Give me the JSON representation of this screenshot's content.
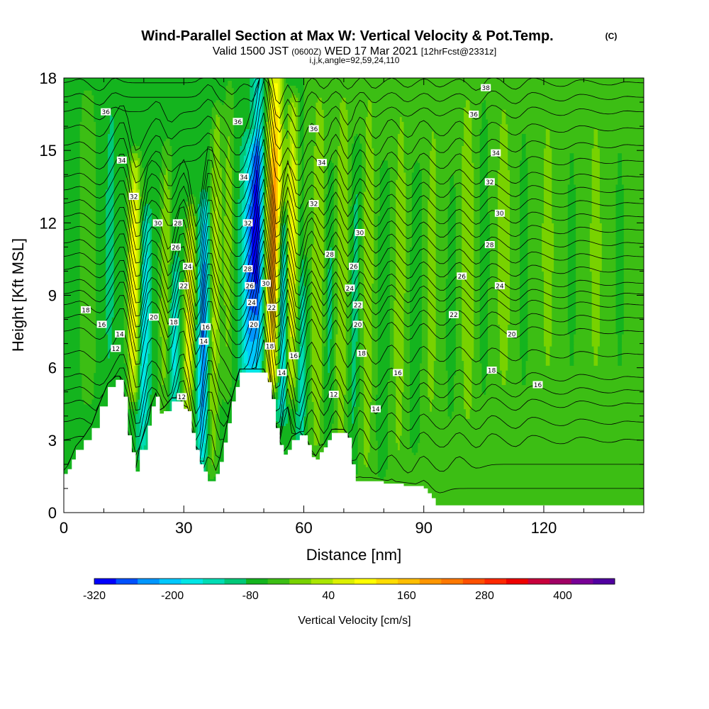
{
  "header": {
    "title": "Wind-Parallel Section at Max W: Vertical Velocity & Pot.Temp.",
    "copyright": "(C)",
    "valid_prefix": "Valid 1500 JST",
    "valid_zulu": "(0600Z)",
    "valid_date": "WED 17 Mar 2021",
    "forecast": "[12hrFcst@2331z]",
    "grid_info": "i,j,k,angle=92,59,24,110"
  },
  "chart_data": {
    "type": "heatmap",
    "title": "Wind-Parallel Section at Max W: Vertical Velocity & Pot.Temp.",
    "xlabel": "Distance [nm]",
    "ylabel": "Height [Kft MSL]",
    "xlim": [
      0,
      145
    ],
    "ylim": [
      0,
      18
    ],
    "x_ticks": [
      0,
      30,
      60,
      90,
      120
    ],
    "y_ticks": [
      0,
      3,
      6,
      9,
      12,
      15,
      18
    ],
    "grid": false,
    "terrain": {
      "x": [
        0,
        1,
        2,
        3,
        5,
        7,
        9,
        11,
        13,
        14,
        15,
        16,
        17,
        18,
        19,
        21,
        22,
        23,
        24,
        25,
        27,
        29,
        30,
        31,
        32,
        33,
        34,
        35,
        36,
        37,
        38,
        39,
        40,
        41,
        42,
        43,
        44,
        45,
        46,
        47,
        48,
        49,
        50,
        51,
        52,
        53,
        54,
        55,
        56,
        57,
        59,
        61,
        62,
        63,
        64,
        65,
        66,
        67,
        69,
        70,
        71,
        72,
        73,
        75,
        77,
        80,
        85,
        90,
        91,
        92,
        93,
        145
      ],
      "y": [
        1.6,
        1.8,
        2.2,
        2.6,
        3.0,
        3.5,
        4.4,
        5.2,
        5.5,
        5.5,
        4.8,
        3.2,
        2.5,
        1.7,
        2.6,
        3.6,
        4.4,
        4.8,
        4.1,
        4.2,
        4.6,
        4.6,
        4.3,
        4.2,
        3.3,
        2.6,
        2.0,
        1.7,
        1.3,
        1.3,
        1.6,
        2.1,
        2.9,
        3.7,
        4.6,
        5.2,
        5.8,
        5.8,
        5.8,
        5.8,
        5.8,
        5.8,
        5.8,
        5.4,
        4.7,
        3.5,
        2.8,
        2.4,
        2.6,
        3.0,
        3.2,
        2.8,
        2.3,
        2.2,
        2.5,
        2.7,
        3.0,
        3.3,
        3.3,
        3.3,
        3.1,
        2.0,
        1.3,
        1.3,
        1.3,
        1.2,
        1.1,
        1.0,
        0.8,
        0.6,
        0.3,
        0.3
      ]
    },
    "w_features": [
      {
        "x": 16.5,
        "x_bottom": 17,
        "x_top": 18,
        "half_width": 1.6,
        "amplitude": 230,
        "y_from": 5.0,
        "y_to": 14.5
      },
      {
        "x": 20,
        "x_bottom": 19.5,
        "x_top": 21,
        "half_width": 1.2,
        "amplitude": -140,
        "y_from": 3.0,
        "y_to": 12
      },
      {
        "x": 25,
        "x_bottom": 24.5,
        "x_top": 26,
        "half_width": 1.5,
        "amplitude": 110,
        "y_from": 4.5,
        "y_to": 15
      },
      {
        "x": 27.5,
        "x_bottom": 27,
        "x_top": 28.5,
        "half_width": 1.2,
        "amplitude": -110,
        "y_from": 4.0,
        "y_to": 10
      },
      {
        "x": 31.5,
        "x_bottom": 30.5,
        "x_top": 32.5,
        "half_width": 1.4,
        "amplitude": 190,
        "y_from": 3.5,
        "y_to": 12.5
      },
      {
        "x": 35,
        "x_bottom": 34.5,
        "x_top": 35.5,
        "half_width": 1.3,
        "amplitude": -220,
        "y_from": 2.5,
        "y_to": 12.5
      },
      {
        "x": 38,
        "x_bottom": 37,
        "x_top": 38.5,
        "half_width": 1.6,
        "amplitude": 130,
        "y_from": 2.0,
        "y_to": 16.5
      },
      {
        "x": 41,
        "x_bottom": 40.5,
        "x_top": 41.5,
        "half_width": 1.3,
        "amplitude": 90,
        "y_from": 5.0,
        "y_to": 17.5
      },
      {
        "x": 46.5,
        "x_bottom": 46,
        "x_top": 47.5,
        "half_width": 2.0,
        "amplitude": -230,
        "y_from": 6.0,
        "y_to": 15
      },
      {
        "x": 49,
        "x_bottom": 49,
        "x_top": 48.5,
        "half_width": 1.2,
        "amplitude": -160,
        "y_from": 6.0,
        "y_to": 18
      },
      {
        "x": 52,
        "x_bottom": 51.5,
        "x_top": 53,
        "half_width": 1.9,
        "amplitude": 340,
        "y_from": 5.5,
        "y_to": 18
      },
      {
        "x": 54.5,
        "x_bottom": 54.5,
        "x_top": 55,
        "half_width": 1.2,
        "amplitude": -190,
        "y_from": 4.5,
        "y_to": 12
      },
      {
        "x": 57,
        "x_bottom": 56.5,
        "x_top": 57.5,
        "half_width": 1.5,
        "amplitude": 200,
        "y_from": 5.0,
        "y_to": 17
      },
      {
        "x": 60,
        "x_bottom": 59.5,
        "x_top": 60.5,
        "half_width": 1.3,
        "amplitude": -80,
        "y_from": 3.0,
        "y_to": 10
      },
      {
        "x": 63.5,
        "x_bottom": 63,
        "x_top": 64,
        "half_width": 1.5,
        "amplitude": 70,
        "y_from": 3.0,
        "y_to": 17
      },
      {
        "x": 66.5,
        "x_bottom": 66,
        "x_top": 67,
        "half_width": 1.2,
        "amplitude": -60,
        "y_from": 3.0,
        "y_to": 14
      },
      {
        "x": 69.5,
        "x_bottom": 69,
        "x_top": 70,
        "half_width": 1.5,
        "amplitude": 70,
        "y_from": 3.0,
        "y_to": 17
      },
      {
        "x": 72.5,
        "x_bottom": 72,
        "x_top": 73.5,
        "half_width": 1.3,
        "amplitude": -70,
        "y_from": 2.0,
        "y_to": 15
      },
      {
        "x": 76,
        "x_bottom": 75.5,
        "x_top": 76.5,
        "half_width": 1.5,
        "amplitude": 60,
        "y_from": 2.0,
        "y_to": 17
      },
      {
        "x": 80,
        "x_bottom": 79.5,
        "x_top": 80.5,
        "half_width": 1.4,
        "amplitude": -50,
        "y_from": 2.0,
        "y_to": 14
      },
      {
        "x": 84,
        "x_bottom": 83.5,
        "x_top": 84.5,
        "half_width": 1.8,
        "amplitude": 50,
        "y_from": 2.0,
        "y_to": 17
      },
      {
        "x": 88,
        "x_bottom": 87.5,
        "x_top": 88.5,
        "half_width": 1.4,
        "amplitude": -45,
        "y_from": 3.0,
        "y_to": 14
      },
      {
        "x": 92,
        "x_bottom": 91.5,
        "x_top": 92.5,
        "half_width": 1.8,
        "amplitude": 45,
        "y_from": 3.0,
        "y_to": 17
      },
      {
        "x": 97,
        "x_bottom": 96.5,
        "x_top": 97.5,
        "half_width": 1.6,
        "amplitude": -40,
        "y_from": 4.0,
        "y_to": 14
      },
      {
        "x": 101,
        "x_bottom": 101,
        "x_top": 101,
        "half_width": 2.0,
        "amplitude": 40,
        "y_from": 4.0,
        "y_to": 17
      },
      {
        "x": 105,
        "x_bottom": 105,
        "x_top": 105,
        "half_width": 1.6,
        "amplitude": -40,
        "y_from": 5.0,
        "y_to": 17
      },
      {
        "x": 110,
        "x_bottom": 110,
        "x_top": 110,
        "half_width": 2.0,
        "amplitude": 35,
        "y_from": 5.0,
        "y_to": 17
      },
      {
        "x": 115,
        "x_bottom": 115,
        "x_top": 115,
        "half_width": 1.6,
        "amplitude": -35,
        "y_from": 5.0,
        "y_to": 16
      },
      {
        "x": 121,
        "x_bottom": 121,
        "x_top": 121,
        "half_width": 2.0,
        "amplitude": 30,
        "y_from": 5.0,
        "y_to": 17
      },
      {
        "x": 127,
        "x_bottom": 127,
        "x_top": 127,
        "half_width": 1.6,
        "amplitude": -30,
        "y_from": 5.0,
        "y_to": 16
      },
      {
        "x": 133,
        "x_bottom": 133,
        "x_top": 133,
        "half_width": 2.0,
        "amplitude": 30,
        "y_from": 5.0,
        "y_to": 17
      },
      {
        "x": 139,
        "x_bottom": 139,
        "x_top": 139,
        "half_width": 1.6,
        "amplitude": -30,
        "y_from": 5.0,
        "y_to": 16
      },
      {
        "x": 11,
        "x_bottom": 11,
        "x_top": 12,
        "half_width": 1.5,
        "amplitude": -50,
        "y_from": 6.0,
        "y_to": 17
      },
      {
        "x": 6,
        "x_bottom": 6,
        "x_top": 6,
        "half_width": 1.8,
        "amplitude": 40,
        "y_from": 5.0,
        "y_to": 17
      }
    ],
    "w_background": [
      {
        "x_from": 0,
        "x_to": 14,
        "value": -10
      },
      {
        "x_from": 14,
        "x_to": 60,
        "value": -30
      },
      {
        "x_from": 60,
        "x_to": 95,
        "value": 10
      },
      {
        "x_from": 95,
        "x_to": 145,
        "value": 20
      }
    ],
    "theta_contours": {
      "min": 12,
      "max": 38,
      "step": 1,
      "reference_x": 145,
      "reference_heights": {
        "12": 1.0,
        "14": 3.0,
        "16": 4.5,
        "18": 5.6,
        "20": 7.5,
        "22": 8.6,
        "24": 9.5,
        "26": 10.6,
        "28": 11.7,
        "30": 12.8,
        "32": 13.9,
        "34": 15.2,
        "36": 16.6,
        "38": 17.8
      },
      "labels": [
        {
          "value": "36",
          "x": 10.5,
          "y": 16.6
        },
        {
          "value": "34",
          "x": 14.5,
          "y": 14.6
        },
        {
          "value": "32",
          "x": 17.5,
          "y": 13.1
        },
        {
          "value": "30",
          "x": 23.5,
          "y": 12.0
        },
        {
          "value": "28",
          "x": 28.5,
          "y": 12.0
        },
        {
          "value": "26",
          "x": 28,
          "y": 11.0
        },
        {
          "value": "24",
          "x": 31,
          "y": 10.2
        },
        {
          "value": "22",
          "x": 30,
          "y": 9.4
        },
        {
          "value": "20",
          "x": 22.5,
          "y": 8.1
        },
        {
          "value": "18",
          "x": 27.5,
          "y": 7.9
        },
        {
          "value": "16",
          "x": 35.5,
          "y": 7.7
        },
        {
          "value": "14",
          "x": 35,
          "y": 7.1
        },
        {
          "value": "12",
          "x": 29.5,
          "y": 4.8
        },
        {
          "value": "18",
          "x": 5.5,
          "y": 8.4
        },
        {
          "value": "16",
          "x": 9.5,
          "y": 7.8
        },
        {
          "value": "14",
          "x": 14,
          "y": 7.4
        },
        {
          "value": "12",
          "x": 13,
          "y": 6.8
        },
        {
          "value": "36",
          "x": 43.5,
          "y": 16.2
        },
        {
          "value": "34",
          "x": 45,
          "y": 13.9
        },
        {
          "value": "32",
          "x": 46,
          "y": 12.0
        },
        {
          "value": "28",
          "x": 46,
          "y": 10.1
        },
        {
          "value": "26",
          "x": 46.5,
          "y": 9.4
        },
        {
          "value": "24",
          "x": 47,
          "y": 8.7
        },
        {
          "value": "20",
          "x": 47.5,
          "y": 7.8
        },
        {
          "value": "30",
          "x": 50.5,
          "y": 9.5
        },
        {
          "value": "22",
          "x": 52,
          "y": 8.5
        },
        {
          "value": "18",
          "x": 51.5,
          "y": 6.9
        },
        {
          "value": "16",
          "x": 57.5,
          "y": 6.5
        },
        {
          "value": "14",
          "x": 54.5,
          "y": 5.8
        },
        {
          "value": "36",
          "x": 62.5,
          "y": 15.9
        },
        {
          "value": "34",
          "x": 64.5,
          "y": 14.5
        },
        {
          "value": "32",
          "x": 62.5,
          "y": 12.8
        },
        {
          "value": "28",
          "x": 66.5,
          "y": 10.7
        },
        {
          "value": "30",
          "x": 74,
          "y": 11.6
        },
        {
          "value": "26",
          "x": 72.5,
          "y": 10.2
        },
        {
          "value": "24",
          "x": 71.5,
          "y": 9.3
        },
        {
          "value": "22",
          "x": 73.5,
          "y": 8.6
        },
        {
          "value": "20",
          "x": 73.5,
          "y": 7.8
        },
        {
          "value": "18",
          "x": 74.5,
          "y": 6.6
        },
        {
          "value": "16",
          "x": 83.5,
          "y": 5.8
        },
        {
          "value": "12",
          "x": 67.5,
          "y": 4.9
        },
        {
          "value": "14",
          "x": 78,
          "y": 4.3
        },
        {
          "value": "38",
          "x": 105.5,
          "y": 17.6
        },
        {
          "value": "36",
          "x": 102.5,
          "y": 16.5
        },
        {
          "value": "34",
          "x": 108,
          "y": 14.9
        },
        {
          "value": "32",
          "x": 106.5,
          "y": 13.7
        },
        {
          "value": "30",
          "x": 109,
          "y": 12.4
        },
        {
          "value": "28",
          "x": 106.5,
          "y": 11.1
        },
        {
          "value": "26",
          "x": 99.5,
          "y": 9.8
        },
        {
          "value": "24",
          "x": 109,
          "y": 9.4
        },
        {
          "value": "22",
          "x": 97.5,
          "y": 8.2
        },
        {
          "value": "20",
          "x": 112,
          "y": 7.4
        },
        {
          "value": "18",
          "x": 107,
          "y": 5.9
        },
        {
          "value": "16",
          "x": 118.5,
          "y": 5.3
        }
      ]
    },
    "colorbar": {
      "label": "Vertical Velocity [cm/s]",
      "min": -320,
      "max": 480,
      "step": 40,
      "tick_labels": [
        "-320",
        "-200",
        "-80",
        "40",
        "160",
        "280",
        "400"
      ],
      "tick_values": [
        -320,
        -200,
        -80,
        40,
        160,
        280,
        400
      ],
      "colors": [
        "#0000ff",
        "#0050ff",
        "#0096ff",
        "#00c8ff",
        "#00e6e6",
        "#00dcb4",
        "#00c878",
        "#14b41e",
        "#3cbe14",
        "#78d200",
        "#aae600",
        "#dcf000",
        "#ffff00",
        "#ffdc00",
        "#ffbe00",
        "#ff9600",
        "#ff7800",
        "#ff5000",
        "#ff2800",
        "#ee0000",
        "#c8003c",
        "#a00064",
        "#780096",
        "#5000a0"
      ]
    }
  }
}
